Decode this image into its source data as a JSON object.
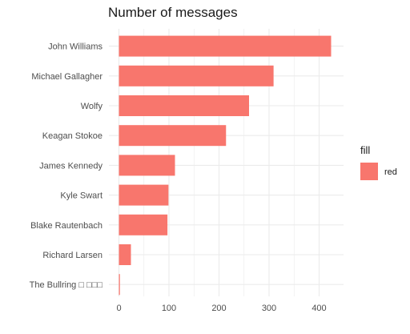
{
  "chart_data": {
    "type": "bar",
    "orientation": "horizontal",
    "title": "Number of messages",
    "xlabel": "",
    "ylabel": "",
    "categories": [
      "John Williams",
      "Michael Gallagher",
      "Wolfy",
      "Keagan Stokoe",
      "James Kennedy",
      "Kyle Swart",
      "Blake Rautenbach",
      "Richard Larsen",
      "The Bullring □ □□□"
    ],
    "values": [
      424,
      309,
      260,
      214,
      112,
      99,
      97,
      24,
      2
    ],
    "xlim": [
      0,
      440
    ],
    "x_ticks": [
      0,
      100,
      200,
      300,
      400
    ],
    "x_tick_labels": [
      "0",
      "100",
      "200",
      "300",
      "400"
    ],
    "grid": true,
    "legend": {
      "title": "fill",
      "entries": [
        {
          "label": "red",
          "color": "#F8766D"
        }
      ],
      "placement": "right"
    },
    "bar_color": "#F8766D",
    "grid_color": "#EBEBEB"
  }
}
